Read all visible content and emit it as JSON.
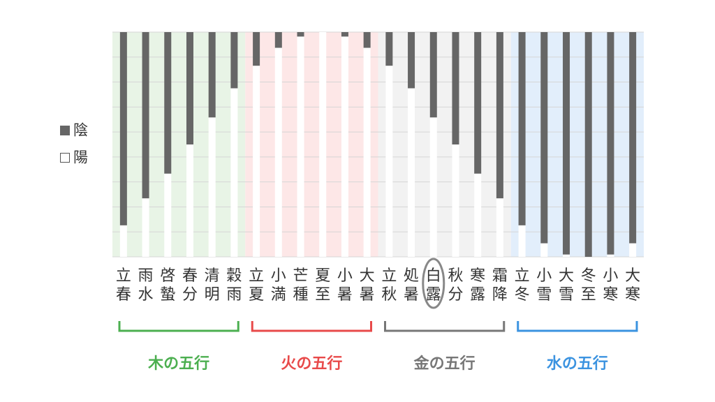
{
  "legend": {
    "yin": "陰",
    "yang": "陽"
  },
  "chart_data": {
    "type": "bar",
    "stacked": true,
    "categories": [
      [
        "立",
        "春"
      ],
      [
        "雨",
        "水"
      ],
      [
        "啓",
        "蟄"
      ],
      [
        "春",
        "分"
      ],
      [
        "清",
        "明"
      ],
      [
        "穀",
        "雨"
      ],
      [
        "立",
        "夏"
      ],
      [
        "小",
        "満"
      ],
      [
        "芒",
        "種"
      ],
      [
        "夏",
        "至"
      ],
      [
        "小",
        "暑"
      ],
      [
        "大",
        "暑"
      ],
      [
        "立",
        "秋"
      ],
      [
        "処",
        "暑"
      ],
      [
        "白",
        "露"
      ],
      [
        "秋",
        "分"
      ],
      [
        "寒",
        "露"
      ],
      [
        "霜",
        "降"
      ],
      [
        "立",
        "冬"
      ],
      [
        "小",
        "雪"
      ],
      [
        "大",
        "雪"
      ],
      [
        "冬",
        "至"
      ],
      [
        "小",
        "寒"
      ],
      [
        "大",
        "寒"
      ]
    ],
    "series": [
      {
        "name": "陰",
        "color": "#666666",
        "values": [
          86,
          74,
          63,
          50,
          38,
          25,
          15,
          7,
          2,
          0,
          2,
          7,
          15,
          25,
          38,
          50,
          63,
          74,
          86,
          94,
          99,
          100,
          99,
          94
        ]
      },
      {
        "name": "陽",
        "color": "#ffffff",
        "values": [
          14,
          26,
          37,
          50,
          62,
          75,
          85,
          93,
          98,
          100,
          98,
          93,
          85,
          75,
          62,
          50,
          37,
          26,
          14,
          6,
          1,
          0,
          1,
          6
        ]
      }
    ],
    "ylim": [
      0,
      100
    ],
    "grid": true,
    "legend_position": "left",
    "highlighted_category": "白露",
    "groups": [
      {
        "label": "木の五行",
        "from": 0,
        "to": 5,
        "color": "#4caf50",
        "bg": "#e8f4e6"
      },
      {
        "label": "火の五行",
        "from": 6,
        "to": 11,
        "color": "#e84a4a",
        "bg": "#fde7e7"
      },
      {
        "label": "金の五行",
        "from": 12,
        "to": 17,
        "color": "#777777",
        "bg": "#f2f2f2"
      },
      {
        "label": "水の五行",
        "from": 18,
        "to": 23,
        "color": "#3b93e0",
        "bg": "#e2eefb"
      }
    ]
  }
}
